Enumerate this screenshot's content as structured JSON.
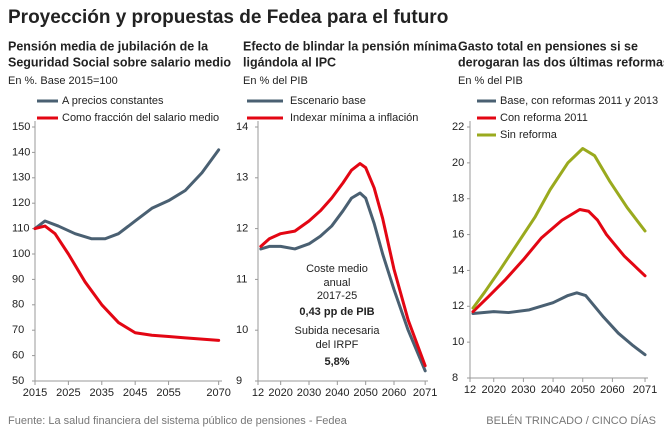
{
  "title": "Proyección y propuestas de Fedea para el futuro",
  "source": "Fuente: La salud financiera del sistema público de pensiones - Fedea",
  "credit": "BELÉN TRINCADO / CINCO DÍAS",
  "chart_data": [
    {
      "type": "line",
      "title": [
        "Pensión media de jubilación de la",
        "Seguridad Social sobre salario medio"
      ],
      "subtitle": "En %. Base 2015=100",
      "xlim": [
        2015,
        2071
      ],
      "xticks": [
        2015,
        2025,
        2035,
        2045,
        2055,
        2070
      ],
      "ylim": [
        50,
        150
      ],
      "yticks": [
        50,
        60,
        70,
        80,
        90,
        100,
        110,
        120,
        130,
        140,
        150
      ],
      "series": [
        {
          "name": "A precios constantes",
          "color": "#4a6072",
          "x": [
            2015,
            2018,
            2022,
            2027,
            2032,
            2036,
            2040,
            2045,
            2050,
            2055,
            2060,
            2065,
            2070
          ],
          "values": [
            110,
            113,
            111,
            108,
            106,
            106,
            108,
            113,
            118,
            121,
            125,
            132,
            141
          ]
        },
        {
          "name": "Como fracción del salario medio",
          "color": "#e30613",
          "x": [
            2015,
            2018,
            2021,
            2025,
            2030,
            2035,
            2040,
            2045,
            2050,
            2055,
            2060,
            2065,
            2070
          ],
          "values": [
            110,
            111,
            108,
            100,
            89,
            80,
            73,
            69,
            68,
            67.5,
            67,
            66.5,
            66
          ]
        }
      ]
    },
    {
      "type": "line",
      "title": [
        "Efecto de blindar la pensión mínima",
        "ligándola al IPC"
      ],
      "subtitle": "En % del PIB",
      "xlim": [
        2012,
        2072
      ],
      "xticks": [
        {
          "value": 2012,
          "label": "12"
        },
        2020,
        2030,
        2040,
        2050,
        2060,
        2071
      ],
      "ylim": [
        9,
        14
      ],
      "yticks": [
        9,
        10,
        11,
        12,
        13,
        14
      ],
      "annotation": [
        "Coste medio",
        "anual",
        "2017-25",
        "0,43 pp de PIB",
        "Subida necesaria",
        "del IRPF",
        "5,8%"
      ],
      "series": [
        {
          "name": "Escenario base",
          "color": "#4a6072",
          "x": [
            2013,
            2016,
            2020,
            2025,
            2030,
            2034,
            2038,
            2042,
            2045,
            2048,
            2050,
            2053,
            2056,
            2060,
            2065,
            2071
          ],
          "values": [
            11.6,
            11.65,
            11.65,
            11.6,
            11.7,
            11.85,
            12.05,
            12.35,
            12.6,
            12.7,
            12.6,
            12.1,
            11.5,
            10.8,
            10.0,
            9.2
          ]
        },
        {
          "name": "Indexar mínima a inflación",
          "color": "#e30613",
          "x": [
            2013,
            2016,
            2020,
            2025,
            2030,
            2034,
            2038,
            2042,
            2045,
            2048,
            2050,
            2053,
            2056,
            2060,
            2065,
            2071
          ],
          "values": [
            11.65,
            11.8,
            11.9,
            11.95,
            12.15,
            12.35,
            12.6,
            12.9,
            13.15,
            13.28,
            13.2,
            12.8,
            12.2,
            11.2,
            10.2,
            9.3
          ]
        }
      ]
    },
    {
      "type": "line",
      "title": [
        "Gasto total en pensiones si se",
        "derogaran las dos últimas reformas"
      ],
      "subtitle": "En % del PIB",
      "xlim": [
        2012,
        2072
      ],
      "xticks": [
        {
          "value": 2012,
          "label": "12"
        },
        2020,
        2030,
        2040,
        2050,
        2060,
        2071
      ],
      "ylim": [
        8,
        22
      ],
      "yticks": [
        8,
        10,
        12,
        14,
        16,
        18,
        20,
        22
      ],
      "series": [
        {
          "name": "Base, con reformas 2011 y 2013",
          "color": "#4a6072",
          "x": [
            2013,
            2020,
            2025,
            2032,
            2040,
            2045,
            2048,
            2051,
            2054,
            2057,
            2062,
            2067,
            2071
          ],
          "values": [
            11.6,
            11.7,
            11.65,
            11.8,
            12.2,
            12.6,
            12.75,
            12.6,
            12.0,
            11.4,
            10.5,
            9.8,
            9.3
          ]
        },
        {
          "name": "Con reforma 2011",
          "color": "#e30613",
          "x": [
            2013,
            2018,
            2024,
            2030,
            2036,
            2043,
            2049,
            2052,
            2055,
            2058,
            2064,
            2071
          ],
          "values": [
            11.7,
            12.5,
            13.5,
            14.6,
            15.8,
            16.8,
            17.4,
            17.3,
            16.8,
            16.0,
            14.8,
            13.7
          ]
        },
        {
          "name": "Sin reforma",
          "color": "#9aaa1e",
          "x": [
            2013,
            2017,
            2022,
            2028,
            2034,
            2039,
            2045,
            2050,
            2054,
            2059,
            2065,
            2071
          ],
          "values": [
            11.9,
            12.8,
            14.0,
            15.5,
            17.0,
            18.5,
            20.0,
            20.8,
            20.4,
            19.0,
            17.5,
            16.2
          ]
        }
      ]
    }
  ]
}
